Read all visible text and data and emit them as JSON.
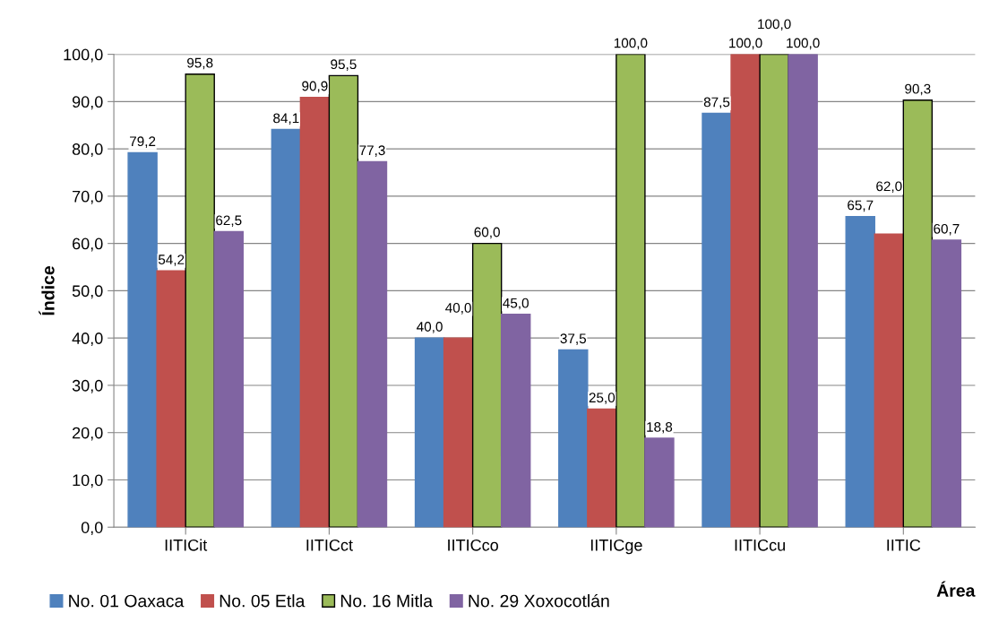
{
  "chart_data": {
    "type": "bar",
    "xlabel": "Área",
    "ylabel": "Índice",
    "categories": [
      "IITICit",
      "IITICct",
      "IITICco",
      "IITICge",
      "IITICcu",
      "IITIC"
    ],
    "series": [
      {
        "name": "No. 01 Oaxaca",
        "color": "#4f81bd",
        "values": [
          79.2,
          84.1,
          40.0,
          37.5,
          87.5,
          65.7
        ],
        "value_labels": [
          "79,2",
          "84,1",
          "40,0",
          "37,5",
          "87,5",
          "65,7"
        ]
      },
      {
        "name": "No. 05 Etla",
        "color": "#c0504d",
        "values": [
          54.2,
          90.9,
          40.0,
          25.0,
          100.0,
          62.0
        ],
        "value_labels": [
          "54,2",
          "90,9",
          "40,0",
          "25,0",
          "100,0",
          "62,0"
        ]
      },
      {
        "name": "No. 16 Mitla",
        "color": "#9bbb59",
        "values": [
          95.8,
          95.5,
          60.0,
          100.0,
          100.0,
          90.3
        ],
        "value_labels": [
          "95,8",
          "95,5",
          "60,0",
          "100,0",
          "100,0",
          "90,3"
        ]
      },
      {
        "name": "No. 29 Xoxocotlán",
        "color": "#8064a2",
        "values": [
          62.5,
          77.3,
          45.0,
          18.8,
          100.0,
          60.7
        ],
        "value_labels": [
          "62,5",
          "77,3",
          "45,0",
          "18,8",
          "100,0",
          "60,7"
        ]
      }
    ],
    "ylim": [
      0,
      100
    ],
    "yticks": [
      {
        "value": 0,
        "label": "0,0"
      },
      {
        "value": 10,
        "label": "10,0"
      },
      {
        "value": 20,
        "label": "20,0"
      },
      {
        "value": 30,
        "label": "30,0"
      },
      {
        "value": 40,
        "label": "40,0"
      },
      {
        "value": 50,
        "label": "50,0"
      },
      {
        "value": 60,
        "label": "60,0"
      },
      {
        "value": 70,
        "label": "70,0"
      },
      {
        "value": 80,
        "label": "80,0"
      },
      {
        "value": 90,
        "label": "90,0"
      },
      {
        "value": 100,
        "label": "100,0"
      }
    ],
    "grid": "y",
    "legend": "bottom"
  }
}
